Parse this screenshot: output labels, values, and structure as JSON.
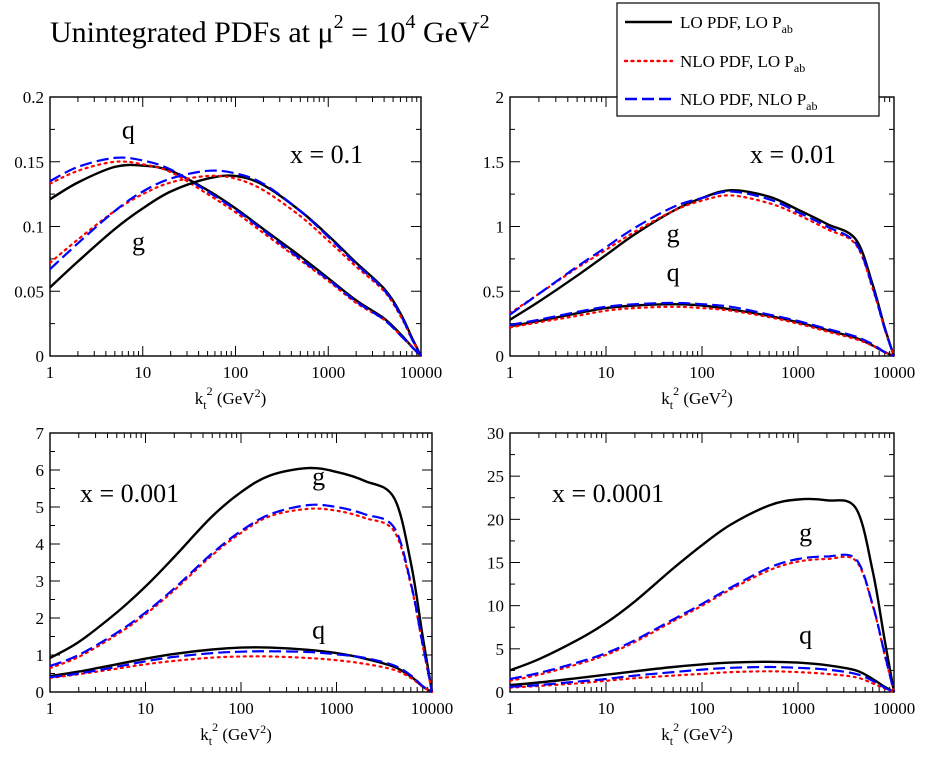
{
  "title": {
    "prefix": "Unintegrated PDFs at ",
    "mu": "μ",
    "mu_sup": "2",
    "equals": " = 10",
    "ten_sup": "4",
    "unit": " GeV",
    "unit_sup": "2"
  },
  "legend": [
    {
      "prefix": "LO PDF, LO P",
      "sub": "ab",
      "color": "#000000",
      "style": "solid"
    },
    {
      "prefix": "NLO PDF, LO P",
      "sub": "ab",
      "color": "#ff0000",
      "style": "dotted"
    },
    {
      "prefix": "NLO PDF, NLO P",
      "sub": "ab",
      "color": "#0000ff",
      "style": "dashed"
    }
  ],
  "colors": {
    "lo": "#000000",
    "nlo_lo": "#ff0000",
    "nlo_nlo": "#0000ff"
  },
  "xaxis": {
    "label_k": "k",
    "label_sub": "t",
    "label_sup": "2",
    "label_unit": "(GeV",
    "label_unit_sup": "2",
    "label_close": ")",
    "ticks": [
      1,
      10,
      100,
      1000,
      10000
    ],
    "tick_labels": [
      "1",
      "10",
      "100",
      "1000",
      "10000"
    ]
  },
  "chart_data": [
    {
      "type": "line",
      "panel_label": "x = 0.1",
      "xscale": "log",
      "xlim": [
        1,
        10000
      ],
      "ylim": [
        0,
        0.2
      ],
      "yticks": [
        0,
        0.05,
        0.1,
        0.15,
        0.2
      ],
      "ytick_labels": [
        "0",
        "0.05",
        "0.1",
        "0.15",
        "0.2"
      ],
      "x": [
        1,
        2,
        5,
        10,
        20,
        50,
        100,
        200,
        500,
        1000,
        2000,
        4000,
        6000,
        8000,
        10000
      ],
      "curve_labels": [
        {
          "text": "q",
          "x": 7,
          "y": 0.168
        },
        {
          "text": "g",
          "x": 9,
          "y": 0.082
        }
      ],
      "series": [
        {
          "name": "LO PDF, LO Pab (q)",
          "color": "#000000",
          "style": "solid",
          "values": [
            0.121,
            0.134,
            0.146,
            0.147,
            0.143,
            0.128,
            0.114,
            0.098,
            0.077,
            0.06,
            0.043,
            0.029,
            0.017,
            0.007,
            0.0
          ]
        },
        {
          "name": "NLO PDF, LO Pab (q)",
          "color": "#ff0000",
          "style": "dotted",
          "values": [
            0.133,
            0.143,
            0.15,
            0.148,
            0.142,
            0.125,
            0.111,
            0.095,
            0.074,
            0.058,
            0.041,
            0.028,
            0.016,
            0.007,
            0.0
          ]
        },
        {
          "name": "NLO PDF, NLO Pab (q)",
          "color": "#0000ff",
          "style": "dashed",
          "values": [
            0.135,
            0.146,
            0.153,
            0.151,
            0.144,
            0.127,
            0.113,
            0.097,
            0.075,
            0.059,
            0.042,
            0.028,
            0.016,
            0.007,
            0.0
          ]
        },
        {
          "name": "LO PDF, LO Pab (g)",
          "color": "#000000",
          "style": "solid",
          "values": [
            0.053,
            0.073,
            0.098,
            0.114,
            0.127,
            0.137,
            0.139,
            0.132,
            0.112,
            0.093,
            0.072,
            0.052,
            0.033,
            0.014,
            0.0
          ]
        },
        {
          "name": "NLO PDF, LO Pab (g)",
          "color": "#ff0000",
          "style": "dotted",
          "values": [
            0.072,
            0.09,
            0.112,
            0.125,
            0.134,
            0.139,
            0.137,
            0.128,
            0.108,
            0.089,
            0.069,
            0.05,
            0.031,
            0.013,
            0.0
          ]
        },
        {
          "name": "NLO PDF, NLO Pab (g)",
          "color": "#0000ff",
          "style": "dashed",
          "values": [
            0.067,
            0.087,
            0.112,
            0.127,
            0.137,
            0.143,
            0.141,
            0.133,
            0.112,
            0.092,
            0.071,
            0.051,
            0.032,
            0.013,
            0.0
          ]
        }
      ]
    },
    {
      "type": "line",
      "panel_label": "x = 0.01",
      "xscale": "log",
      "xlim": [
        1,
        10000
      ],
      "ylim": [
        0,
        2
      ],
      "yticks": [
        0,
        0.5,
        1,
        1.5,
        2
      ],
      "ytick_labels": [
        "0",
        "0.5",
        "1",
        "1.5",
        "2"
      ],
      "x": [
        1,
        2,
        5,
        10,
        20,
        50,
        100,
        200,
        500,
        1000,
        2000,
        4000,
        6000,
        8000,
        10000
      ],
      "curve_labels": [
        {
          "text": "g",
          "x": 50,
          "y": 0.88
        },
        {
          "text": "q",
          "x": 50,
          "y": 0.58
        }
      ],
      "series": [
        {
          "name": "LO PDF, LO Pab (g)",
          "color": "#000000",
          "style": "solid",
          "values": [
            0.28,
            0.42,
            0.62,
            0.78,
            0.94,
            1.12,
            1.22,
            1.28,
            1.23,
            1.13,
            1.02,
            0.9,
            0.55,
            0.22,
            0.0
          ]
        },
        {
          "name": "NLO PDF, LO Pab (g)",
          "color": "#ff0000",
          "style": "dotted",
          "values": [
            0.33,
            0.48,
            0.68,
            0.82,
            0.96,
            1.12,
            1.2,
            1.24,
            1.18,
            1.09,
            0.98,
            0.86,
            0.52,
            0.21,
            0.0
          ]
        },
        {
          "name": "NLO PDF, NLO Pab (g)",
          "color": "#0000ff",
          "style": "dashed",
          "values": [
            0.32,
            0.48,
            0.69,
            0.84,
            0.99,
            1.15,
            1.22,
            1.27,
            1.21,
            1.11,
            1.0,
            0.87,
            0.53,
            0.21,
            0.0
          ]
        },
        {
          "name": "LO PDF, LO Pab (q)",
          "color": "#000000",
          "style": "solid",
          "values": [
            0.23,
            0.27,
            0.33,
            0.37,
            0.39,
            0.4,
            0.39,
            0.36,
            0.31,
            0.26,
            0.2,
            0.14,
            0.08,
            0.03,
            0.0
          ]
        },
        {
          "name": "NLO PDF, LO Pab (q)",
          "color": "#ff0000",
          "style": "dotted",
          "values": [
            0.22,
            0.26,
            0.31,
            0.35,
            0.37,
            0.38,
            0.37,
            0.35,
            0.3,
            0.25,
            0.19,
            0.13,
            0.08,
            0.03,
            0.0
          ]
        },
        {
          "name": "NLO PDF, NLO Pab (q)",
          "color": "#0000ff",
          "style": "dashed",
          "values": [
            0.24,
            0.28,
            0.34,
            0.38,
            0.4,
            0.41,
            0.4,
            0.38,
            0.32,
            0.27,
            0.21,
            0.15,
            0.09,
            0.03,
            0.0
          ]
        }
      ]
    },
    {
      "type": "line",
      "panel_label": "x = 0.001",
      "xscale": "log",
      "xlim": [
        1,
        10000
      ],
      "ylim": [
        0,
        7
      ],
      "yticks": [
        0,
        1,
        2,
        3,
        4,
        5,
        6,
        7
      ],
      "ytick_labels": [
        "0",
        "1",
        "2",
        "3",
        "4",
        "5",
        "6",
        "7"
      ],
      "x": [
        1,
        2,
        5,
        10,
        20,
        50,
        100,
        200,
        500,
        1000,
        2000,
        4000,
        6000,
        8000,
        10000
      ],
      "curve_labels": [
        {
          "text": "g",
          "x": 650,
          "y": 5.6
        },
        {
          "text": "q",
          "x": 650,
          "y": 1.45
        }
      ],
      "series": [
        {
          "name": "LO PDF, LO Pab (g)",
          "color": "#000000",
          "style": "solid",
          "values": [
            0.92,
            1.35,
            2.15,
            2.85,
            3.65,
            4.75,
            5.4,
            5.85,
            6.05,
            5.95,
            5.7,
            5.25,
            3.5,
            1.5,
            0.0
          ]
        },
        {
          "name": "NLO PDF, LO Pab (g)",
          "color": "#ff0000",
          "style": "dotted",
          "values": [
            0.65,
            0.95,
            1.55,
            2.1,
            2.75,
            3.7,
            4.3,
            4.75,
            4.95,
            4.9,
            4.7,
            4.35,
            2.9,
            1.25,
            0.0
          ]
        },
        {
          "name": "NLO PDF, NLO Pab (g)",
          "color": "#0000ff",
          "style": "dashed",
          "values": [
            0.7,
            1.0,
            1.6,
            2.15,
            2.8,
            3.75,
            4.35,
            4.8,
            5.05,
            5.0,
            4.8,
            4.45,
            2.95,
            1.28,
            0.0
          ]
        },
        {
          "name": "LO PDF, LO Pab (q)",
          "color": "#000000",
          "style": "solid",
          "values": [
            0.43,
            0.55,
            0.75,
            0.9,
            1.03,
            1.15,
            1.2,
            1.2,
            1.14,
            1.05,
            0.9,
            0.68,
            0.42,
            0.15,
            0.0
          ]
        },
        {
          "name": "NLO PDF, LO Pab (q)",
          "color": "#ff0000",
          "style": "dotted",
          "values": [
            0.38,
            0.48,
            0.63,
            0.75,
            0.84,
            0.93,
            0.96,
            0.96,
            0.92,
            0.86,
            0.76,
            0.6,
            0.38,
            0.14,
            0.0
          ]
        },
        {
          "name": "NLO PDF, NLO Pab (q)",
          "color": "#0000ff",
          "style": "dashed",
          "values": [
            0.4,
            0.5,
            0.68,
            0.83,
            0.95,
            1.05,
            1.09,
            1.1,
            1.08,
            1.02,
            0.92,
            0.72,
            0.45,
            0.16,
            0.0
          ]
        }
      ]
    },
    {
      "type": "line",
      "panel_label": "x = 0.0001",
      "xscale": "log",
      "xlim": [
        1,
        10000
      ],
      "ylim": [
        0,
        30
      ],
      "yticks": [
        0,
        5,
        10,
        15,
        20,
        25,
        30
      ],
      "ytick_labels": [
        "0",
        "5",
        "10",
        "15",
        "20",
        "25",
        "30"
      ],
      "x": [
        1,
        2,
        5,
        10,
        20,
        50,
        100,
        200,
        500,
        1000,
        2000,
        4000,
        6000,
        8000,
        10000
      ],
      "curve_labels": [
        {
          "text": "g",
          "x": 1200,
          "y": 17.5
        },
        {
          "text": "q",
          "x": 1200,
          "y": 5.6
        }
      ],
      "series": [
        {
          "name": "LO PDF, LO Pab (g)",
          "color": "#000000",
          "style": "solid",
          "values": [
            2.5,
            3.8,
            6.0,
            8.0,
            10.5,
            14.3,
            17.0,
            19.4,
            21.6,
            22.3,
            22.2,
            21.3,
            14.0,
            6.0,
            0.0
          ]
        },
        {
          "name": "NLO PDF, LO Pab (g)",
          "color": "#ff0000",
          "style": "dotted",
          "values": [
            1.3,
            2.0,
            3.2,
            4.3,
            5.8,
            8.2,
            10.0,
            11.9,
            14.1,
            15.1,
            15.4,
            15.2,
            10.0,
            4.3,
            0.0
          ]
        },
        {
          "name": "NLO PDF, NLO Pab (g)",
          "color": "#0000ff",
          "style": "dashed",
          "values": [
            1.5,
            2.2,
            3.4,
            4.5,
            6.0,
            8.4,
            10.2,
            12.1,
            14.4,
            15.4,
            15.7,
            15.4,
            10.1,
            4.4,
            0.0
          ]
        },
        {
          "name": "LO PDF, LO Pab (q)",
          "color": "#000000",
          "style": "solid",
          "values": [
            0.8,
            1.1,
            1.6,
            2.0,
            2.4,
            2.9,
            3.2,
            3.4,
            3.5,
            3.4,
            3.1,
            2.5,
            1.5,
            0.6,
            0.0
          ]
        },
        {
          "name": "NLO PDF, LO Pab (q)",
          "color": "#ff0000",
          "style": "dotted",
          "values": [
            0.5,
            0.7,
            1.0,
            1.3,
            1.6,
            1.9,
            2.1,
            2.3,
            2.4,
            2.3,
            2.1,
            1.7,
            1.0,
            0.4,
            0.0
          ]
        },
        {
          "name": "NLO PDF, NLO Pab (q)",
          "color": "#0000ff",
          "style": "dashed",
          "values": [
            0.6,
            0.8,
            1.2,
            1.5,
            1.9,
            2.3,
            2.6,
            2.8,
            2.9,
            2.8,
            2.6,
            2.1,
            1.3,
            0.5,
            0.0
          ]
        }
      ]
    }
  ]
}
